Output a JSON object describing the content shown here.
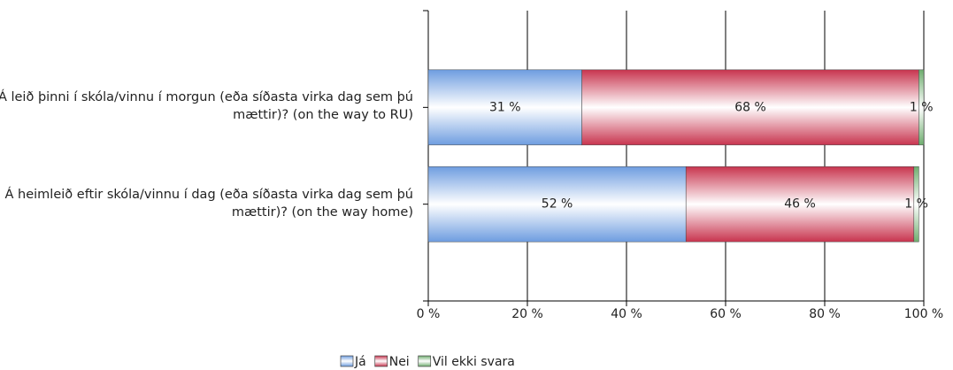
{
  "chart_data": {
    "type": "stacked-bar-horizontal",
    "categories": [
      "Á leið þinni í skóla/vinnu í morgun (eða síðasta virka dag sem þú mættir)? (on the way to RU)",
      "Á heimleið eftir skóla/vinnu í dag (eða síðasta virka dag sem þú mættir)? (on the way home)"
    ],
    "series": [
      {
        "name": "Já",
        "color": "#6e9de0",
        "values": [
          31,
          52
        ],
        "value_labels": [
          "31 %",
          "52 %"
        ]
      },
      {
        "name": "Nei",
        "color": "#c8344e",
        "values": [
          68,
          46
        ],
        "value_labels": [
          "68 %",
          "46 %"
        ]
      },
      {
        "name": "Vil ekki svara",
        "color": "#6fae6f",
        "values": [
          1,
          1
        ],
        "value_labels": [
          "1 %",
          "1 %"
        ]
      }
    ],
    "xlim": [
      0,
      100
    ],
    "xticks": [
      {
        "value": 0,
        "label": "0 %"
      },
      {
        "value": 20,
        "label": "20 %"
      },
      {
        "value": 40,
        "label": "40 %"
      },
      {
        "value": 60,
        "label": "60 %"
      },
      {
        "value": 80,
        "label": "80 %"
      },
      {
        "value": 100,
        "label": "100 %"
      }
    ],
    "grid": true,
    "legend": "bottom"
  }
}
